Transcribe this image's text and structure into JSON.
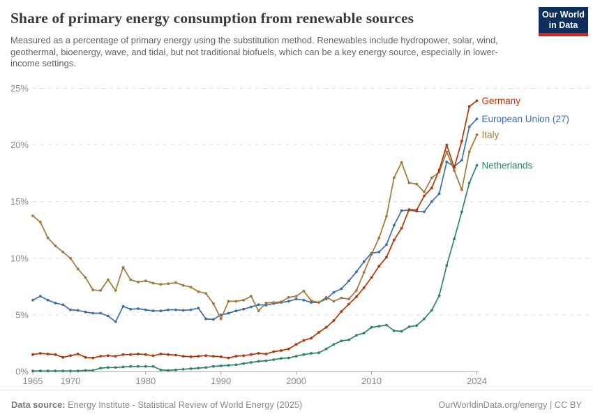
{
  "header": {
    "title": "Share of primary energy consumption from renewable sources",
    "subtitle": "Measured as a percentage of primary energy using the substitution method. Renewables include hydropower, solar, wind, geothermal, bioenergy, wave, and tidal, but not traditional biofuels, which can be a key energy source, especially in lower-income settings."
  },
  "logo": {
    "line1": "Our World",
    "line2": "in Data",
    "bg_color": "#0d2e5c",
    "accent_color": "#d0271d"
  },
  "footer": {
    "source_label": "Data source:",
    "source_text": " Energy Institute - Statistical Review of World Energy (2025)",
    "link_text": "OurWorldinData.org/energy | CC BY"
  },
  "chart_data": {
    "type": "line",
    "title": "Share of primary energy consumption from renewable sources",
    "ylabel": "",
    "xlabel": "",
    "ylim": [
      0,
      25
    ],
    "ytick_suffix": "%",
    "yticks": [
      0,
      5,
      10,
      15,
      20,
      25
    ],
    "xticks": [
      1965,
      1970,
      1980,
      1990,
      2000,
      2010,
      2024
    ],
    "grid": "dashed-horizontal",
    "legend_position": "end-of-line-labels",
    "years": [
      1965,
      1966,
      1967,
      1968,
      1969,
      1970,
      1971,
      1972,
      1973,
      1974,
      1975,
      1976,
      1977,
      1978,
      1979,
      1980,
      1981,
      1982,
      1983,
      1984,
      1985,
      1986,
      1987,
      1988,
      1989,
      1990,
      1991,
      1992,
      1993,
      1994,
      1995,
      1996,
      1997,
      1998,
      1999,
      2000,
      2001,
      2002,
      2003,
      2004,
      2005,
      2006,
      2007,
      2008,
      2009,
      2010,
      2011,
      2012,
      2013,
      2014,
      2015,
      2016,
      2017,
      2018,
      2019,
      2020,
      2021,
      2022,
      2023,
      2024
    ],
    "series": [
      {
        "name": "Germany",
        "color": "#b13507",
        "values": [
          1.5,
          1.6,
          1.55,
          1.5,
          1.25,
          1.4,
          1.55,
          1.25,
          1.2,
          1.35,
          1.4,
          1.35,
          1.5,
          1.5,
          1.55,
          1.5,
          1.4,
          1.55,
          1.5,
          1.45,
          1.35,
          1.3,
          1.35,
          1.4,
          1.35,
          1.3,
          1.2,
          1.35,
          1.4,
          1.5,
          1.6,
          1.55,
          1.75,
          1.85,
          2.0,
          2.4,
          2.75,
          2.95,
          3.45,
          3.9,
          4.5,
          5.3,
          5.95,
          6.6,
          7.4,
          8.3,
          9.3,
          10.1,
          11.6,
          12.65,
          14.3,
          14.25,
          15.5,
          16.2,
          17.8,
          20.0,
          18.0,
          20.35,
          23.4,
          23.9
        ]
      },
      {
        "name": "European Union (27)",
        "color": "#3f6da9",
        "values": [
          6.3,
          6.65,
          6.3,
          6.05,
          5.9,
          5.45,
          5.4,
          5.25,
          5.15,
          5.15,
          4.9,
          4.4,
          5.75,
          5.5,
          5.55,
          5.45,
          5.35,
          5.35,
          5.45,
          5.45,
          5.4,
          5.45,
          5.6,
          4.65,
          4.6,
          5.0,
          5.15,
          5.35,
          5.5,
          5.7,
          5.9,
          5.85,
          6.0,
          6.1,
          6.2,
          6.4,
          6.3,
          6.1,
          6.1,
          6.4,
          7.0,
          7.3,
          8.0,
          8.8,
          9.7,
          10.45,
          10.55,
          11.2,
          12.9,
          14.2,
          14.25,
          14.15,
          14.1,
          15.0,
          15.7,
          18.5,
          18.1,
          18.65,
          21.6,
          22.3
        ]
      },
      {
        "name": "Italy",
        "color": "#9e7939",
        "values": [
          13.75,
          13.2,
          11.8,
          11.1,
          10.55,
          10.0,
          9.05,
          8.3,
          7.2,
          7.15,
          8.1,
          7.15,
          9.2,
          8.1,
          7.9,
          8.0,
          7.8,
          7.7,
          7.75,
          7.85,
          7.6,
          7.45,
          7.05,
          6.9,
          6.0,
          4.65,
          6.2,
          6.2,
          6.3,
          6.65,
          5.35,
          6.05,
          6.1,
          6.15,
          6.55,
          6.65,
          7.1,
          6.25,
          6.1,
          6.55,
          6.2,
          6.5,
          6.4,
          7.15,
          8.75,
          10.35,
          11.8,
          13.7,
          17.1,
          18.45,
          16.65,
          16.55,
          15.85,
          17.1,
          17.6,
          19.4,
          17.75,
          16.05,
          19.4,
          20.9
        ]
      },
      {
        "name": "Netherlands",
        "color": "#2c8465",
        "values": [
          0.05,
          0.05,
          0.05,
          0.05,
          0.05,
          0.05,
          0.05,
          0.1,
          0.1,
          0.3,
          0.35,
          0.35,
          0.4,
          0.45,
          0.45,
          0.45,
          0.45,
          0.15,
          0.1,
          0.15,
          0.2,
          0.25,
          0.3,
          0.35,
          0.45,
          0.5,
          0.55,
          0.6,
          0.7,
          0.8,
          0.9,
          0.95,
          1.05,
          1.15,
          1.2,
          1.35,
          1.5,
          1.6,
          1.65,
          2.0,
          2.4,
          2.7,
          2.8,
          3.2,
          3.4,
          3.9,
          4.0,
          4.1,
          3.6,
          3.55,
          3.95,
          4.05,
          4.65,
          5.4,
          6.7,
          9.35,
          11.7,
          14.1,
          16.65,
          18.2
        ]
      }
    ]
  }
}
